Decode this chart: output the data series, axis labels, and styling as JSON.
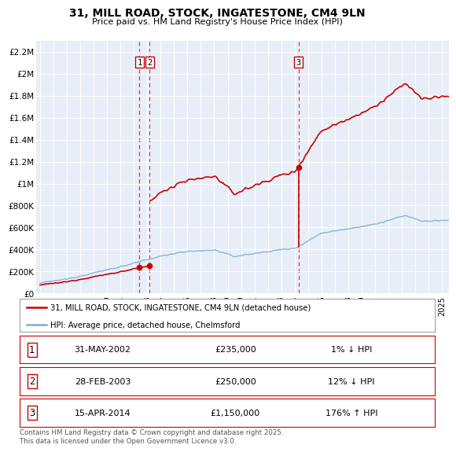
{
  "title": "31, MILL ROAD, STOCK, INGATESTONE, CM4 9LN",
  "subtitle": "Price paid vs. HM Land Registry's House Price Index (HPI)",
  "red_label": "31, MILL ROAD, STOCK, INGATESTONE, CM4 9LN (detached house)",
  "blue_label": "HPI: Average price, detached house, Chelmsford",
  "red_color": "#cc0000",
  "blue_color": "#7aaed6",
  "bg_color": "#e8eef8",
  "grid_color": "#ffffff",
  "ylim": [
    0,
    2300000
  ],
  "xlim_start": 1994.7,
  "xlim_end": 2025.5,
  "yticks": [
    0,
    200000,
    400000,
    600000,
    800000,
    1000000,
    1200000,
    1400000,
    1600000,
    1800000,
    2000000,
    2200000
  ],
  "ytick_labels": [
    "£0",
    "£200K",
    "£400K",
    "£600K",
    "£800K",
    "£1M",
    "£1.2M",
    "£1.4M",
    "£1.6M",
    "£1.8M",
    "£2M",
    "£2.2M"
  ],
  "xticks": [
    1995,
    1996,
    1997,
    1998,
    1999,
    2000,
    2001,
    2002,
    2003,
    2004,
    2005,
    2006,
    2007,
    2008,
    2009,
    2010,
    2011,
    2012,
    2013,
    2014,
    2015,
    2016,
    2017,
    2018,
    2019,
    2020,
    2021,
    2022,
    2023,
    2024,
    2025
  ],
  "sale1_x": 2002.42,
  "sale1_y": 235000,
  "sale2_x": 2003.17,
  "sale2_y": 250000,
  "sale3_x": 2014.29,
  "sale3_y": 1150000,
  "table_entries": [
    {
      "num": "1",
      "date": "31-MAY-2002",
      "price": "£235,000",
      "hpi": "1% ↓ HPI"
    },
    {
      "num": "2",
      "date": "28-FEB-2003",
      "price": "£250,000",
      "hpi": "12% ↓ HPI"
    },
    {
      "num": "3",
      "date": "15-APR-2014",
      "price": "£1,150,000",
      "hpi": "176% ↑ HPI"
    }
  ],
  "footnote": "Contains HM Land Registry data © Crown copyright and database right 2025.\nThis data is licensed under the Open Government Licence v3.0."
}
